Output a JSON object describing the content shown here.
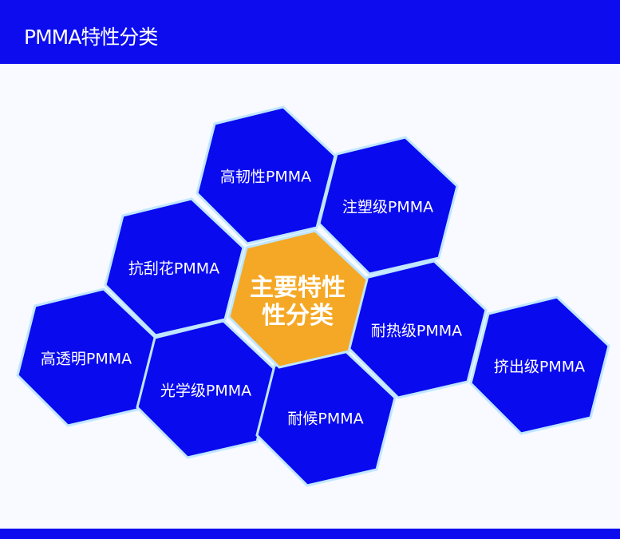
{
  "header": {
    "title": "PMMA特性分类"
  },
  "colors": {
    "header": "#0c0cef",
    "hex": "#0a0aef",
    "center": "#f5a825",
    "border": "#bfe6ff"
  },
  "diagram": {
    "center": {
      "line1": "主要特性",
      "line2": "性分类"
    },
    "items": [
      {
        "label": "高韧性PMMA"
      },
      {
        "label": "注塑级PMMA"
      },
      {
        "label": "抗刮花PMMA"
      },
      {
        "label": "高透明PMMA"
      },
      {
        "label": "光学级PMMA"
      },
      {
        "label": "耐热级PMMA"
      },
      {
        "label": "耐候PMMA"
      },
      {
        "label": "挤出级PMMA"
      }
    ]
  }
}
